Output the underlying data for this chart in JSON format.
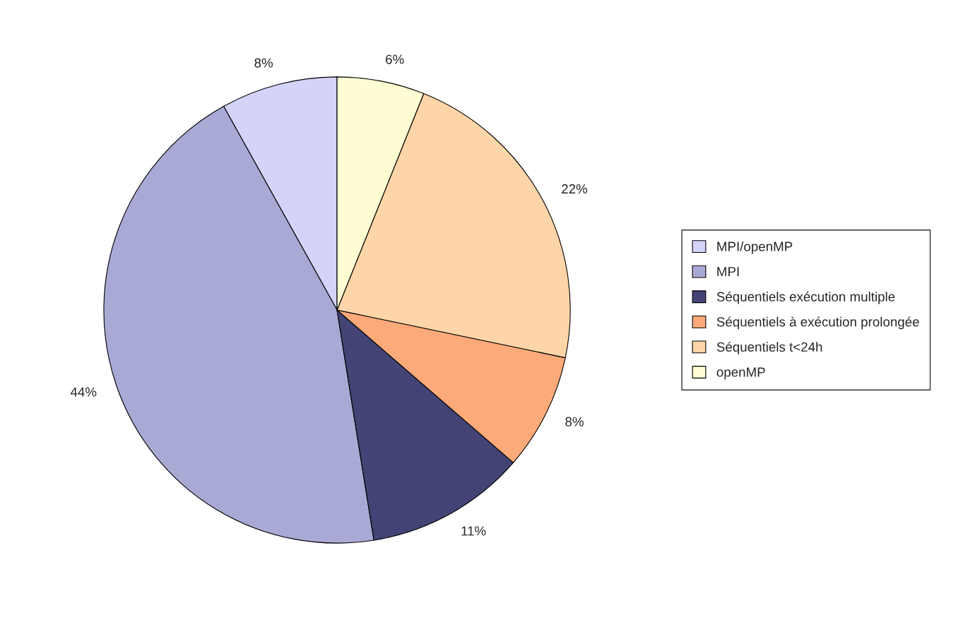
{
  "chart_data": {
    "type": "pie",
    "categories": [
      "MPI/openMP",
      "MPI",
      "Séquentiels exécution multiple",
      "Séquentiels à exécution prolongée",
      "Séquentiels t<24h",
      "openMP"
    ],
    "values": [
      8,
      44,
      11,
      8,
      22,
      6
    ],
    "value_labels": [
      "8%",
      "44%",
      "11%",
      "8%",
      "22%",
      "6%"
    ],
    "colors": [
      "#d4d4fa",
      "#a9a9d5",
      "#434475",
      "#fdaa7a",
      "#fed5a8",
      "#fefcd2"
    ],
    "legend": "right"
  }
}
